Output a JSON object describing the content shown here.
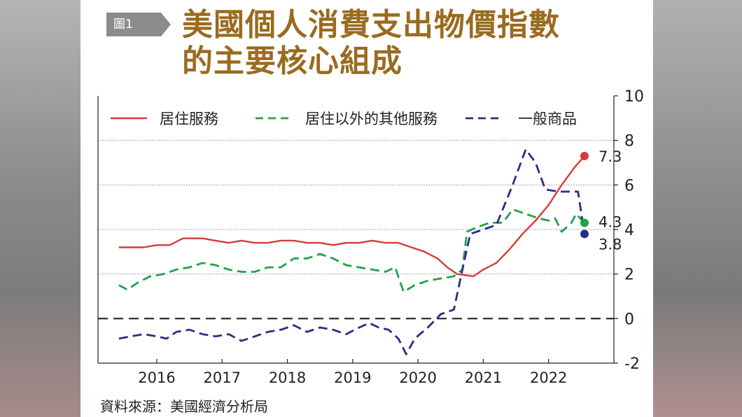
{
  "figure": {
    "tag": "圖1",
    "title_line1": "美國個人消費支出物價指數",
    "title_line2": "的主要核心組成",
    "source": "資料來源：美國經濟分析局"
  },
  "colors": {
    "housing": "#d63a3a",
    "services_ex_housing": "#23a04a",
    "core_goods": "#2b2b8c",
    "title": "#9a6b1f",
    "tag_bg": "#8c8c8c"
  },
  "chart_data": {
    "type": "line",
    "xlabel": "",
    "ylabel": "",
    "x_ticks": [
      "2016",
      "2017",
      "2018",
      "2019",
      "2020",
      "2021",
      "2022"
    ],
    "x_tick_values": [
      2016,
      2017,
      2018,
      2019,
      2020,
      2021,
      2022
    ],
    "y_ticks": [
      10,
      8,
      6,
      4,
      2,
      0,
      -2
    ],
    "ylim": [
      -2,
      10
    ],
    "xlim": [
      2015.1,
      2023.0
    ],
    "y_axis_side": "right",
    "grid": "dotted horizontal at 2, 4, 6, 8",
    "zero_line": "dashed",
    "legend_position": "top",
    "series": [
      {
        "name": "居住服務",
        "style": "solid",
        "color": "#d63a3a",
        "end_label": "7.3",
        "points": [
          [
            2015.42,
            3.2
          ],
          [
            2015.6,
            3.2
          ],
          [
            2015.8,
            3.2
          ],
          [
            2016.0,
            3.3
          ],
          [
            2016.2,
            3.3
          ],
          [
            2016.4,
            3.6
          ],
          [
            2016.7,
            3.6
          ],
          [
            2016.9,
            3.5
          ],
          [
            2017.1,
            3.4
          ],
          [
            2017.3,
            3.5
          ],
          [
            2017.5,
            3.4
          ],
          [
            2017.7,
            3.4
          ],
          [
            2017.9,
            3.5
          ],
          [
            2018.1,
            3.5
          ],
          [
            2018.3,
            3.4
          ],
          [
            2018.5,
            3.4
          ],
          [
            2018.7,
            3.3
          ],
          [
            2018.9,
            3.4
          ],
          [
            2019.1,
            3.4
          ],
          [
            2019.3,
            3.5
          ],
          [
            2019.5,
            3.4
          ],
          [
            2019.7,
            3.4
          ],
          [
            2019.9,
            3.2
          ],
          [
            2020.1,
            3.0
          ],
          [
            2020.3,
            2.7
          ],
          [
            2020.45,
            2.3
          ],
          [
            2020.6,
            2.0
          ],
          [
            2020.85,
            1.9
          ],
          [
            2021.0,
            2.2
          ],
          [
            2021.2,
            2.5
          ],
          [
            2021.4,
            3.1
          ],
          [
            2021.6,
            3.8
          ],
          [
            2021.8,
            4.4
          ],
          [
            2022.0,
            5.1
          ],
          [
            2022.2,
            6.0
          ],
          [
            2022.4,
            6.8
          ],
          [
            2022.55,
            7.3
          ]
        ]
      },
      {
        "name": "居住以外的其他服務",
        "style": "dashed",
        "color": "#23a04a",
        "end_label": "4.3",
        "points": [
          [
            2015.42,
            1.5
          ],
          [
            2015.55,
            1.3
          ],
          [
            2015.7,
            1.6
          ],
          [
            2015.9,
            1.9
          ],
          [
            2016.1,
            2.0
          ],
          [
            2016.3,
            2.2
          ],
          [
            2016.5,
            2.3
          ],
          [
            2016.7,
            2.5
          ],
          [
            2016.9,
            2.4
          ],
          [
            2017.1,
            2.2
          ],
          [
            2017.3,
            2.1
          ],
          [
            2017.5,
            2.1
          ],
          [
            2017.7,
            2.3
          ],
          [
            2017.9,
            2.3
          ],
          [
            2018.1,
            2.7
          ],
          [
            2018.3,
            2.7
          ],
          [
            2018.5,
            2.9
          ],
          [
            2018.7,
            2.7
          ],
          [
            2018.9,
            2.4
          ],
          [
            2019.1,
            2.3
          ],
          [
            2019.3,
            2.2
          ],
          [
            2019.5,
            2.1
          ],
          [
            2019.65,
            2.3
          ],
          [
            2019.78,
            1.2
          ],
          [
            2019.95,
            1.5
          ],
          [
            2020.15,
            1.7
          ],
          [
            2020.35,
            1.8
          ],
          [
            2020.55,
            1.9
          ],
          [
            2020.68,
            2.2
          ],
          [
            2020.75,
            3.9
          ],
          [
            2020.9,
            4.1
          ],
          [
            2021.1,
            4.3
          ],
          [
            2021.3,
            4.3
          ],
          [
            2021.45,
            4.9
          ],
          [
            2021.65,
            4.7
          ],
          [
            2021.85,
            4.5
          ],
          [
            2022.0,
            4.4
          ],
          [
            2022.1,
            4.5
          ],
          [
            2022.2,
            3.9
          ],
          [
            2022.35,
            4.3
          ],
          [
            2022.42,
            4.7
          ],
          [
            2022.55,
            4.3
          ]
        ]
      },
      {
        "name": "一般商品",
        "style": "dashed",
        "color": "#2b2b8c",
        "end_label": "3.8",
        "points": [
          [
            2015.42,
            -0.9
          ],
          [
            2015.6,
            -0.8
          ],
          [
            2015.8,
            -0.7
          ],
          [
            2016.0,
            -0.8
          ],
          [
            2016.15,
            -0.9
          ],
          [
            2016.3,
            -0.6
          ],
          [
            2016.5,
            -0.5
          ],
          [
            2016.7,
            -0.7
          ],
          [
            2016.9,
            -0.8
          ],
          [
            2017.1,
            -0.7
          ],
          [
            2017.3,
            -1.0
          ],
          [
            2017.5,
            -0.8
          ],
          [
            2017.7,
            -0.6
          ],
          [
            2017.9,
            -0.5
          ],
          [
            2018.1,
            -0.3
          ],
          [
            2018.3,
            -0.6
          ],
          [
            2018.5,
            -0.4
          ],
          [
            2018.7,
            -0.5
          ],
          [
            2018.9,
            -0.7
          ],
          [
            2019.1,
            -0.4
          ],
          [
            2019.25,
            -0.2
          ],
          [
            2019.4,
            -0.4
          ],
          [
            2019.55,
            -0.5
          ],
          [
            2019.7,
            -0.9
          ],
          [
            2019.82,
            -1.6
          ],
          [
            2019.95,
            -0.9
          ],
          [
            2020.15,
            -0.4
          ],
          [
            2020.35,
            0.2
          ],
          [
            2020.55,
            0.4
          ],
          [
            2020.68,
            2.2
          ],
          [
            2020.8,
            3.8
          ],
          [
            2021.0,
            4.0
          ],
          [
            2021.2,
            4.2
          ],
          [
            2021.45,
            6.0
          ],
          [
            2021.65,
            7.6
          ],
          [
            2021.8,
            7.0
          ],
          [
            2021.95,
            5.8
          ],
          [
            2022.15,
            5.7
          ],
          [
            2022.3,
            5.7
          ],
          [
            2022.45,
            5.7
          ],
          [
            2022.55,
            3.8
          ]
        ]
      }
    ]
  }
}
